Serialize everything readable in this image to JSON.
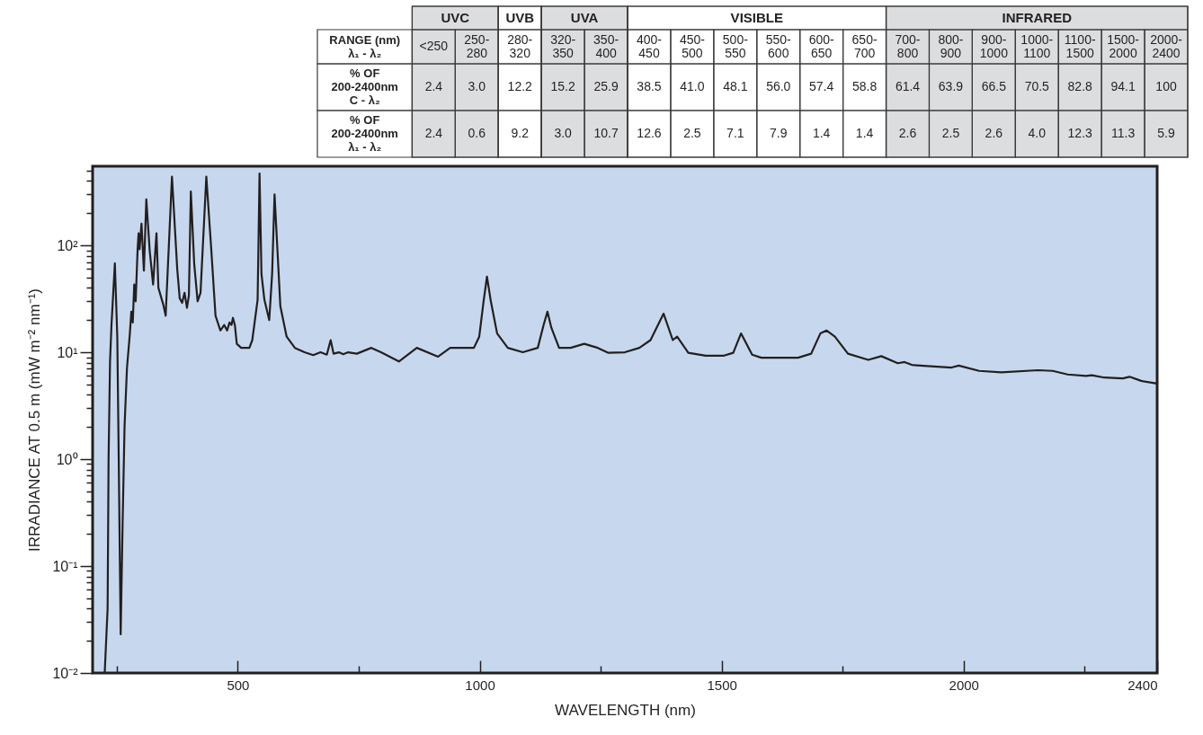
{
  "chart_data": [
    {
      "type": "line",
      "xlabel": "WAVELENGTH (nm)",
      "ylabel": "IRRADIANCE AT 0.5 m (mW m⁻² nm⁻¹)",
      "log": true,
      "xlim": [
        200,
        2400
      ],
      "ylim": [
        0.01,
        550
      ],
      "xticks": [
        {
          "value": 250,
          "label": null
        },
        500,
        {
          "value": 750,
          "label": null
        },
        1000,
        {
          "value": 1250,
          "label": null
        },
        1500,
        {
          "value": 1750,
          "label": null
        },
        2000,
        {
          "value": 2250,
          "label": null
        },
        2400
      ],
      "yticks": [
        {
          "value": 0.01,
          "label": "10⁻²"
        },
        {
          "value": 0.02,
          "label": null
        },
        {
          "value": 0.03,
          "label": null
        },
        {
          "value": 0.04,
          "label": null
        },
        {
          "value": 0.05,
          "label": null
        },
        {
          "value": 0.06,
          "label": null
        },
        {
          "value": 0.07,
          "label": null
        },
        {
          "value": 0.08,
          "label": null
        },
        {
          "value": 0.09,
          "label": null
        },
        {
          "value": 0.1,
          "label": "10⁻¹"
        },
        {
          "value": 0.2,
          "label": null
        },
        {
          "value": 0.3,
          "label": null
        },
        {
          "value": 0.4,
          "label": null
        },
        {
          "value": 0.5,
          "label": null
        },
        {
          "value": 0.6,
          "label": null
        },
        {
          "value": 0.7,
          "label": null
        },
        {
          "value": 0.8,
          "label": null
        },
        {
          "value": 0.9,
          "label": null
        },
        {
          "value": 1,
          "label": "10⁰"
        },
        {
          "value": 2,
          "label": null
        },
        {
          "value": 3,
          "label": null
        },
        {
          "value": 4,
          "label": null
        },
        {
          "value": 5,
          "label": null
        },
        {
          "value": 6,
          "label": null
        },
        {
          "value": 7,
          "label": null
        },
        {
          "value": 8,
          "label": null
        },
        {
          "value": 9,
          "label": null
        },
        {
          "value": 10,
          "label": "10¹"
        },
        {
          "value": 20,
          "label": null
        },
        {
          "value": 30,
          "label": null
        },
        {
          "value": 40,
          "label": null
        },
        {
          "value": 50,
          "label": null
        },
        {
          "value": 60,
          "label": null
        },
        {
          "value": 70,
          "label": null
        },
        {
          "value": 80,
          "label": null
        },
        {
          "value": 90,
          "label": null
        },
        {
          "value": 100,
          "label": "10²"
        },
        {
          "value": 200,
          "label": null
        },
        {
          "value": 300,
          "label": null
        },
        {
          "value": 400,
          "label": null
        },
        {
          "value": 500,
          "label": null
        }
      ],
      "x": [
        225,
        231,
        233,
        236,
        239,
        246,
        251,
        254,
        258,
        262,
        266,
        271,
        277,
        280,
        283,
        286,
        289,
        293,
        295,
        297,
        301,
        306,
        311,
        318,
        325,
        332,
        336,
        346,
        351,
        364,
        375,
        380,
        385,
        390,
        395,
        399,
        403,
        410,
        417,
        423,
        435,
        445,
        454,
        464,
        472,
        478,
        483,
        487,
        490,
        494,
        498,
        507,
        524,
        530,
        541,
        545,
        549,
        555,
        565,
        571,
        576,
        588,
        596,
        601,
        618,
        638,
        656,
        671,
        684,
        692,
        698,
        709,
        718,
        728,
        746,
        776,
        796,
        833,
        870,
        914,
        939,
        964,
        988,
        999,
        1008,
        1015,
        1023,
        1036,
        1058,
        1089,
        1120,
        1132,
        1140,
        1148,
        1164,
        1188,
        1216,
        1244,
        1265,
        1300,
        1330,
        1353,
        1380,
        1399,
        1408,
        1431,
        1467,
        1505,
        1524,
        1540,
        1563,
        1582,
        1658,
        1685,
        1704,
        1717,
        1734,
        1761,
        1803,
        1830,
        1864,
        1878,
        1894,
        1975,
        1990,
        2032,
        2078,
        2154,
        2184,
        2215,
        2253,
        2265,
        2291,
        2329,
        2343,
        2367,
        2400
      ],
      "series": [
        {
          "color": "#231f20",
          "values": [
            0.01,
            0.04,
            1.0,
            8.2,
            18,
            68,
            14,
            1.0,
            0.023,
            0.25,
            2.0,
            7.1,
            15,
            24,
            19,
            43,
            30,
            92,
            130,
            92,
            160,
            58,
            270,
            89,
            43,
            130,
            40,
            28,
            22,
            440,
            59,
            32,
            29,
            36,
            26,
            34,
            320,
            67,
            30,
            36,
            440,
            95,
            22,
            16,
            18,
            16,
            19,
            18,
            21,
            18,
            12,
            11,
            11,
            13,
            31,
            470,
            54,
            31,
            20,
            54,
            300,
            27,
            18,
            14,
            11,
            10,
            9.4,
            10,
            9.5,
            13,
            9.7,
            10,
            9.6,
            10,
            9.7,
            11,
            10,
            8.2,
            11,
            9.1,
            11,
            11,
            11,
            14,
            30,
            51,
            30,
            15,
            11,
            10,
            11,
            18,
            24,
            17,
            11,
            11,
            12,
            11,
            9.9,
            10,
            11,
            13,
            23,
            13,
            14,
            9.9,
            9.3,
            9.3,
            9.9,
            15,
            9.5,
            8.9,
            8.9,
            9.7,
            15,
            16,
            14,
            9.7,
            8.5,
            9.2,
            7.9,
            8.1,
            7.6,
            7.2,
            7.5,
            6.7,
            6.5,
            6.8,
            6.7,
            6.2,
            6.0,
            6.1,
            5.8,
            5.7,
            5.9,
            5.4,
            5.1
          ]
        }
      ]
    },
    {
      "type": "heatmap",
      "xlabel": "RANGE (nm) λ₁ - λ₂",
      "categories": [
        "<250",
        "250-280",
        "280-320",
        "320-350",
        "350-400",
        "400-450",
        "450-500",
        "500-550",
        "550-600",
        "600-650",
        "650-700",
        "700-800",
        "800-900",
        "900-1000",
        "1000-1100",
        "1100-1500",
        "1500-2000",
        "2000-2400"
      ],
      "y_categories": [
        "% OF 200-2400nm C - λ₂",
        "% OF 200-2400nm λ₁ - λ₂"
      ],
      "cells": [
        [
          2.4,
          3.0,
          12.2,
          15.2,
          25.9,
          38.5,
          41.0,
          48.1,
          56.0,
          57.4,
          58.8,
          61.4,
          63.9,
          66.5,
          70.5,
          82.8,
          94.1,
          100
        ],
        [
          2.4,
          0.6,
          9.2,
          3.0,
          10.7,
          12.6,
          2.5,
          7.1,
          7.9,
          1.4,
          1.4,
          2.6,
          2.5,
          2.6,
          4.0,
          12.3,
          11.3,
          5.9
        ]
      ],
      "cell_labels": [
        [
          "2.4",
          "3.0",
          "12.2",
          "15.2",
          "25.9",
          "38.5",
          "41.0",
          "48.1",
          "56.0",
          "57.4",
          "58.8",
          "61.4",
          "63.9",
          "66.5",
          "70.5",
          "82.8",
          "94.1",
          "100"
        ],
        [
          "2.4",
          "0.6",
          "9.2",
          "3.0",
          "10.7",
          "12.6",
          "2.5",
          "7.1",
          "7.9",
          "1.4",
          "1.4",
          "2.6",
          "2.5",
          "2.6",
          "4.0",
          "12.3",
          "11.3",
          "5.9"
        ]
      ],
      "bands": [
        {
          "axis": "x",
          "from": "<250",
          "to": "250-280",
          "label": "UVC",
          "color": "#dcdddf"
        },
        {
          "axis": "x",
          "from": "280-320",
          "to": "280-320",
          "label": "UVB",
          "color": "#ffffff"
        },
        {
          "axis": "x",
          "from": "320-350",
          "to": "350-400",
          "label": "UVA",
          "color": "#dcdddf"
        },
        {
          "axis": "x",
          "from": "400-450",
          "to": "650-700",
          "label": "VISIBLE",
          "color": "#ffffff"
        },
        {
          "axis": "x",
          "from": "700-800",
          "to": "2000-2400",
          "label": "INFRARED",
          "color": "#dcdddf"
        }
      ]
    }
  ]
}
